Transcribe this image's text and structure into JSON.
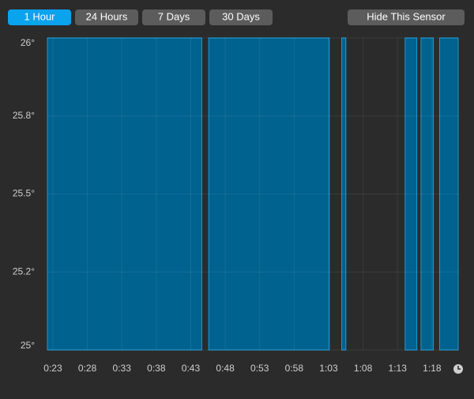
{
  "buttons": [
    "1 Hour",
    "24 Hours",
    "7 Days",
    "30 Days"
  ],
  "hide_button": "Hide This Sensor",
  "chart_data": {
    "type": "area",
    "step": "post",
    "x": [
      22.2,
      44.6,
      45.6,
      63.1,
      64.9,
      65.5,
      74.1,
      75.8,
      76.4,
      78.2,
      79.1
    ],
    "values": [
      26,
      25,
      26,
      25,
      26,
      25,
      26,
      25,
      26,
      25,
      26
    ],
    "color": "#00628f",
    "line_color": "#1a9ad6",
    "xlim": [
      22.2,
      81.8
    ],
    "xticks": [
      {
        "value": 23,
        "label": "0:23"
      },
      {
        "value": 28,
        "label": "0:28"
      },
      {
        "value": 33,
        "label": "0:33"
      },
      {
        "value": 38,
        "label": "0:38"
      },
      {
        "value": 43,
        "label": "0:43"
      },
      {
        "value": 48,
        "label": "0:48"
      },
      {
        "value": 53,
        "label": "0:53"
      },
      {
        "value": 58,
        "label": "0:58"
      },
      {
        "value": 63,
        "label": "1:03"
      },
      {
        "value": 68,
        "label": "1:08"
      },
      {
        "value": 73,
        "label": "1:13"
      },
      {
        "value": 78,
        "label": "1:18"
      }
    ],
    "ylim": [
      25,
      26
    ],
    "yticks": [
      {
        "value": 26,
        "label": "26°"
      },
      {
        "value": 25.75,
        "label": "25.8°"
      },
      {
        "value": 25.5,
        "label": "25.5°"
      },
      {
        "value": 25.25,
        "label": "25.2°"
      },
      {
        "value": 25,
        "label": "25°"
      }
    ],
    "grid": true
  }
}
